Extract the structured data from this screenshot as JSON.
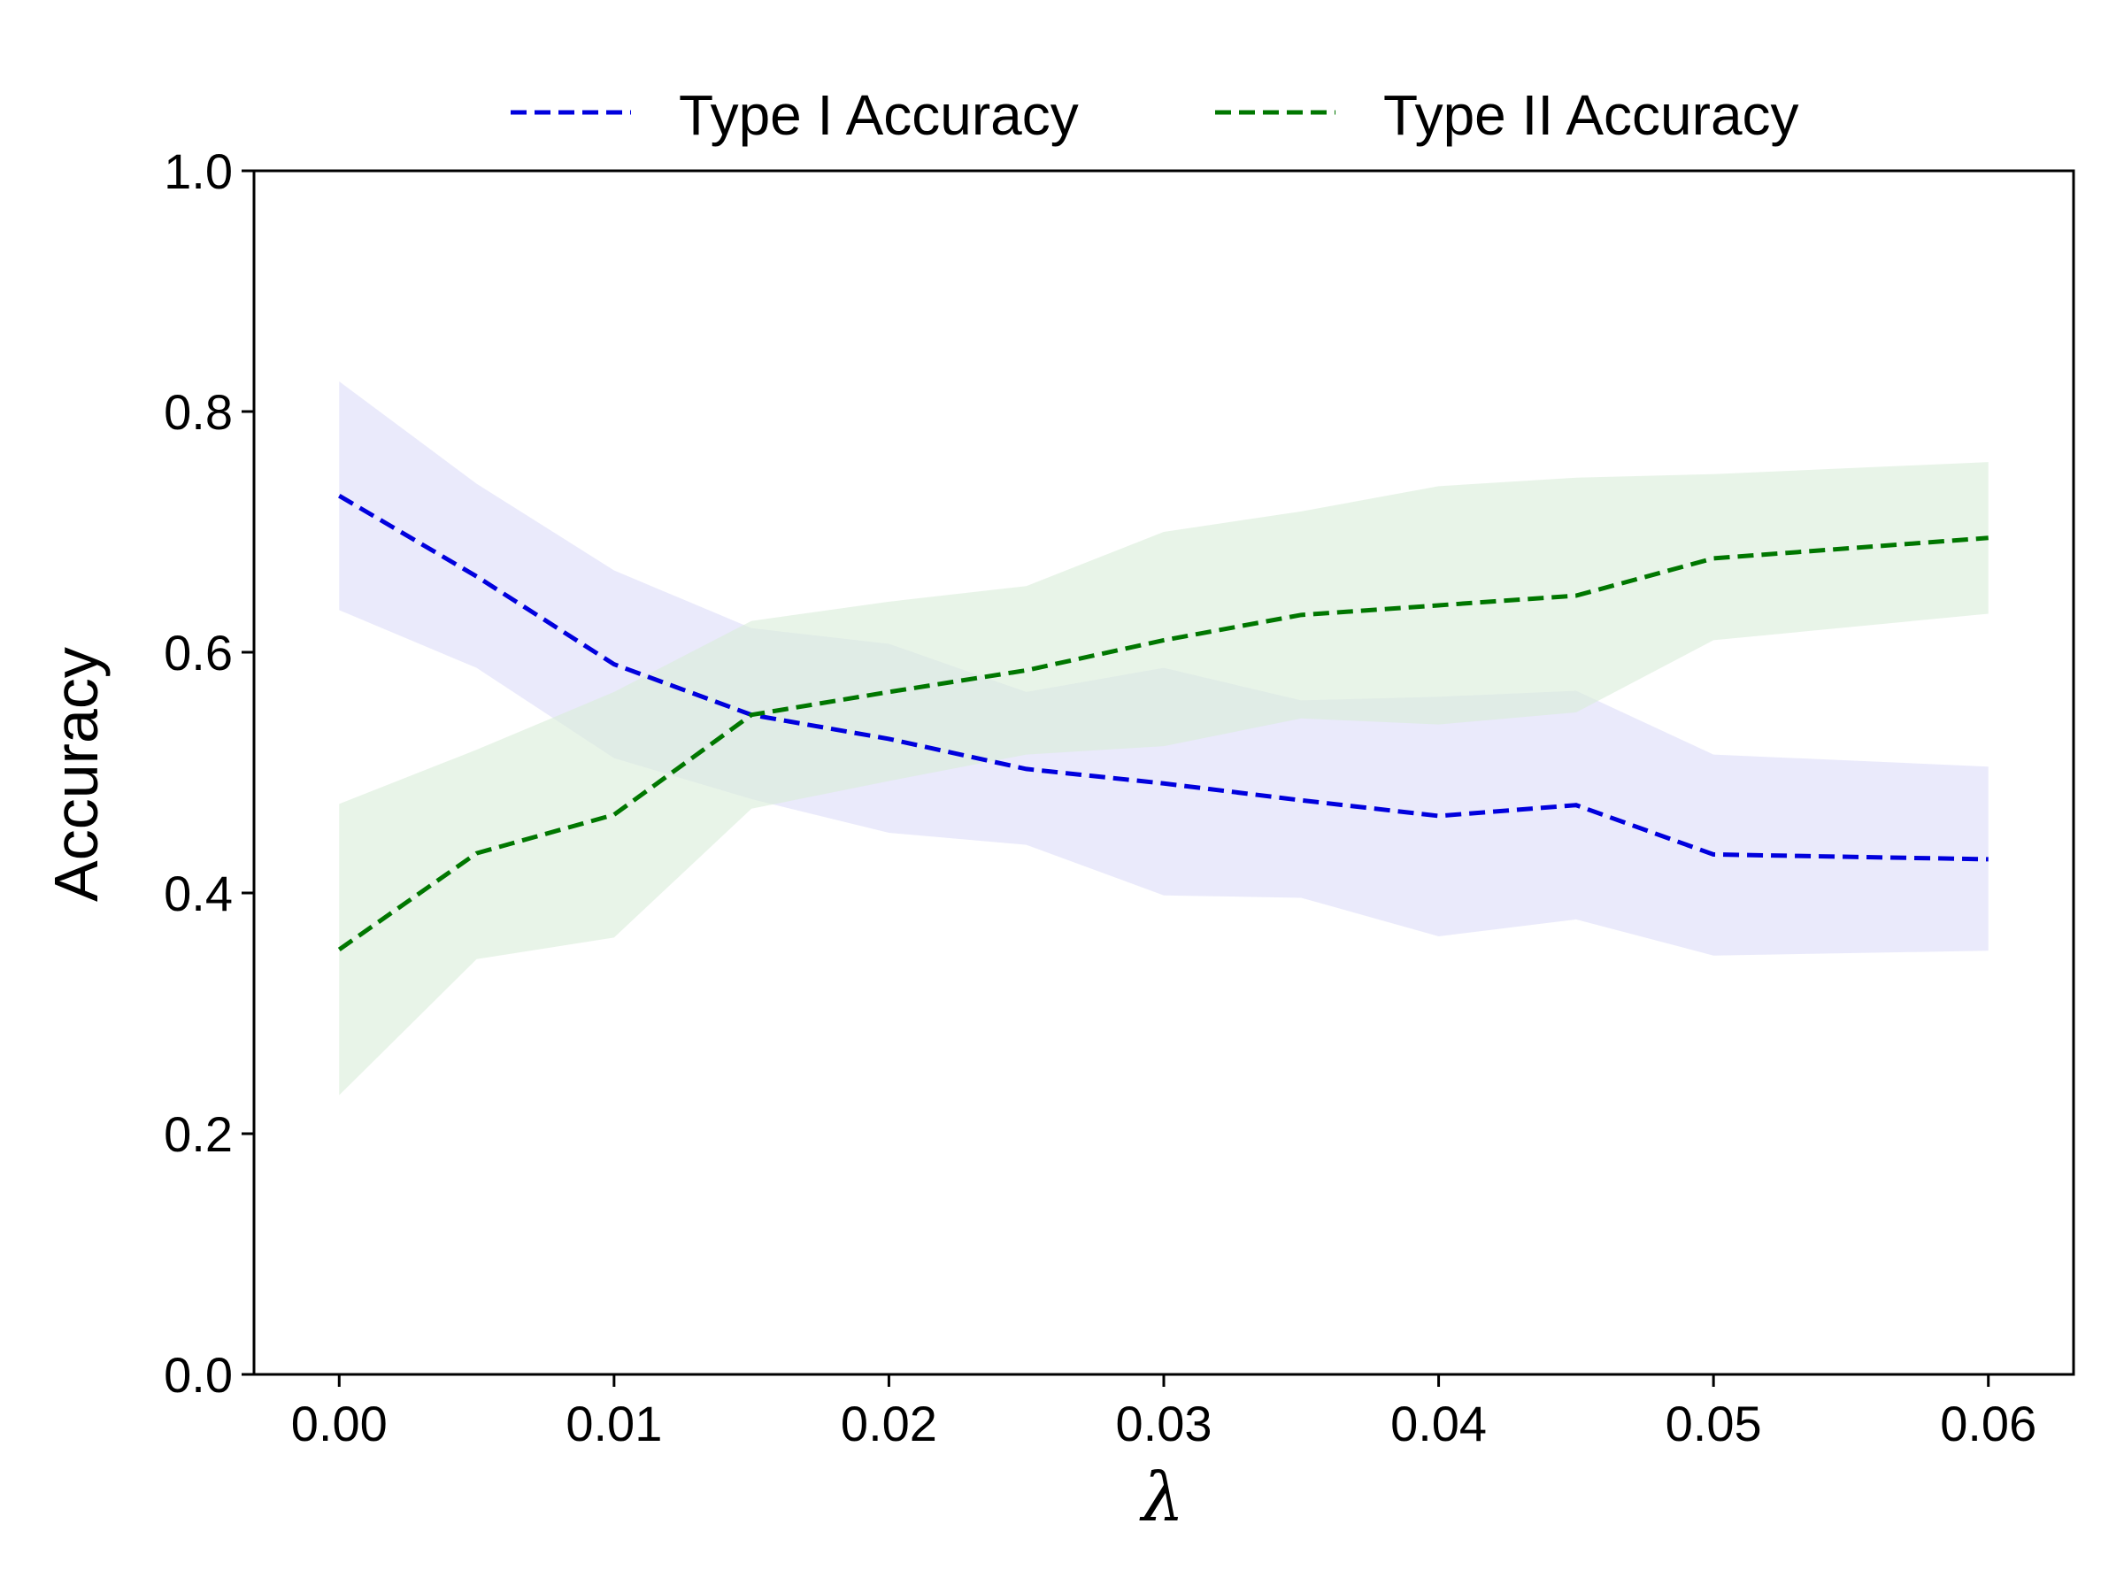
{
  "chart_data": {
    "type": "line",
    "title": "",
    "xlabel": "λ",
    "ylabel": "Accuracy",
    "xlim": [
      -0.0031,
      0.0631
    ],
    "ylim": [
      0.0,
      1.0
    ],
    "xticks": [
      0.0,
      0.01,
      0.02,
      0.03,
      0.04,
      0.05,
      0.06
    ],
    "xtick_labels": [
      "0.00",
      "0.01",
      "0.02",
      "0.03",
      "0.04",
      "0.05",
      "0.06"
    ],
    "yticks": [
      0.0,
      0.2,
      0.4,
      0.6,
      0.8,
      1.0
    ],
    "ytick_labels": [
      "0.0",
      "0.2",
      "0.4",
      "0.6",
      "0.8",
      "1.0"
    ],
    "grid": false,
    "legend_position": "top-center",
    "x": [
      0.0,
      0.005,
      0.01,
      0.015,
      0.02,
      0.025,
      0.03,
      0.035,
      0.04,
      0.045,
      0.05,
      0.06
    ],
    "series": [
      {
        "name": "Type I Accuracy",
        "color": "#0000dd",
        "band_color": "#e6e6fa",
        "line_style": "dashed",
        "values": [
          0.73,
          0.663,
          0.59,
          0.548,
          0.528,
          0.503,
          0.491,
          0.477,
          0.464,
          0.473,
          0.432,
          0.428
        ],
        "lower": [
          0.635,
          0.587,
          0.512,
          0.478,
          0.45,
          0.44,
          0.398,
          0.396,
          0.364,
          0.378,
          0.348,
          0.352
        ],
        "upper": [
          0.825,
          0.74,
          0.668,
          0.62,
          0.607,
          0.567,
          0.587,
          0.56,
          0.563,
          0.568,
          0.515,
          0.505
        ]
      },
      {
        "name": "Type II Accuracy",
        "color": "#007700",
        "band_color": "#d8ecd8",
        "line_style": "dashed",
        "values": [
          0.353,
          0.433,
          0.465,
          0.548,
          0.567,
          0.585,
          0.61,
          0.631,
          0.639,
          0.647,
          0.678,
          0.695
        ],
        "lower": [
          0.232,
          0.345,
          0.363,
          0.47,
          0.493,
          0.515,
          0.522,
          0.545,
          0.54,
          0.55,
          0.61,
          0.632
        ],
        "upper": [
          0.474,
          0.519,
          0.567,
          0.626,
          0.642,
          0.655,
          0.7,
          0.717,
          0.738,
          0.745,
          0.748,
          0.758
        ]
      }
    ]
  }
}
